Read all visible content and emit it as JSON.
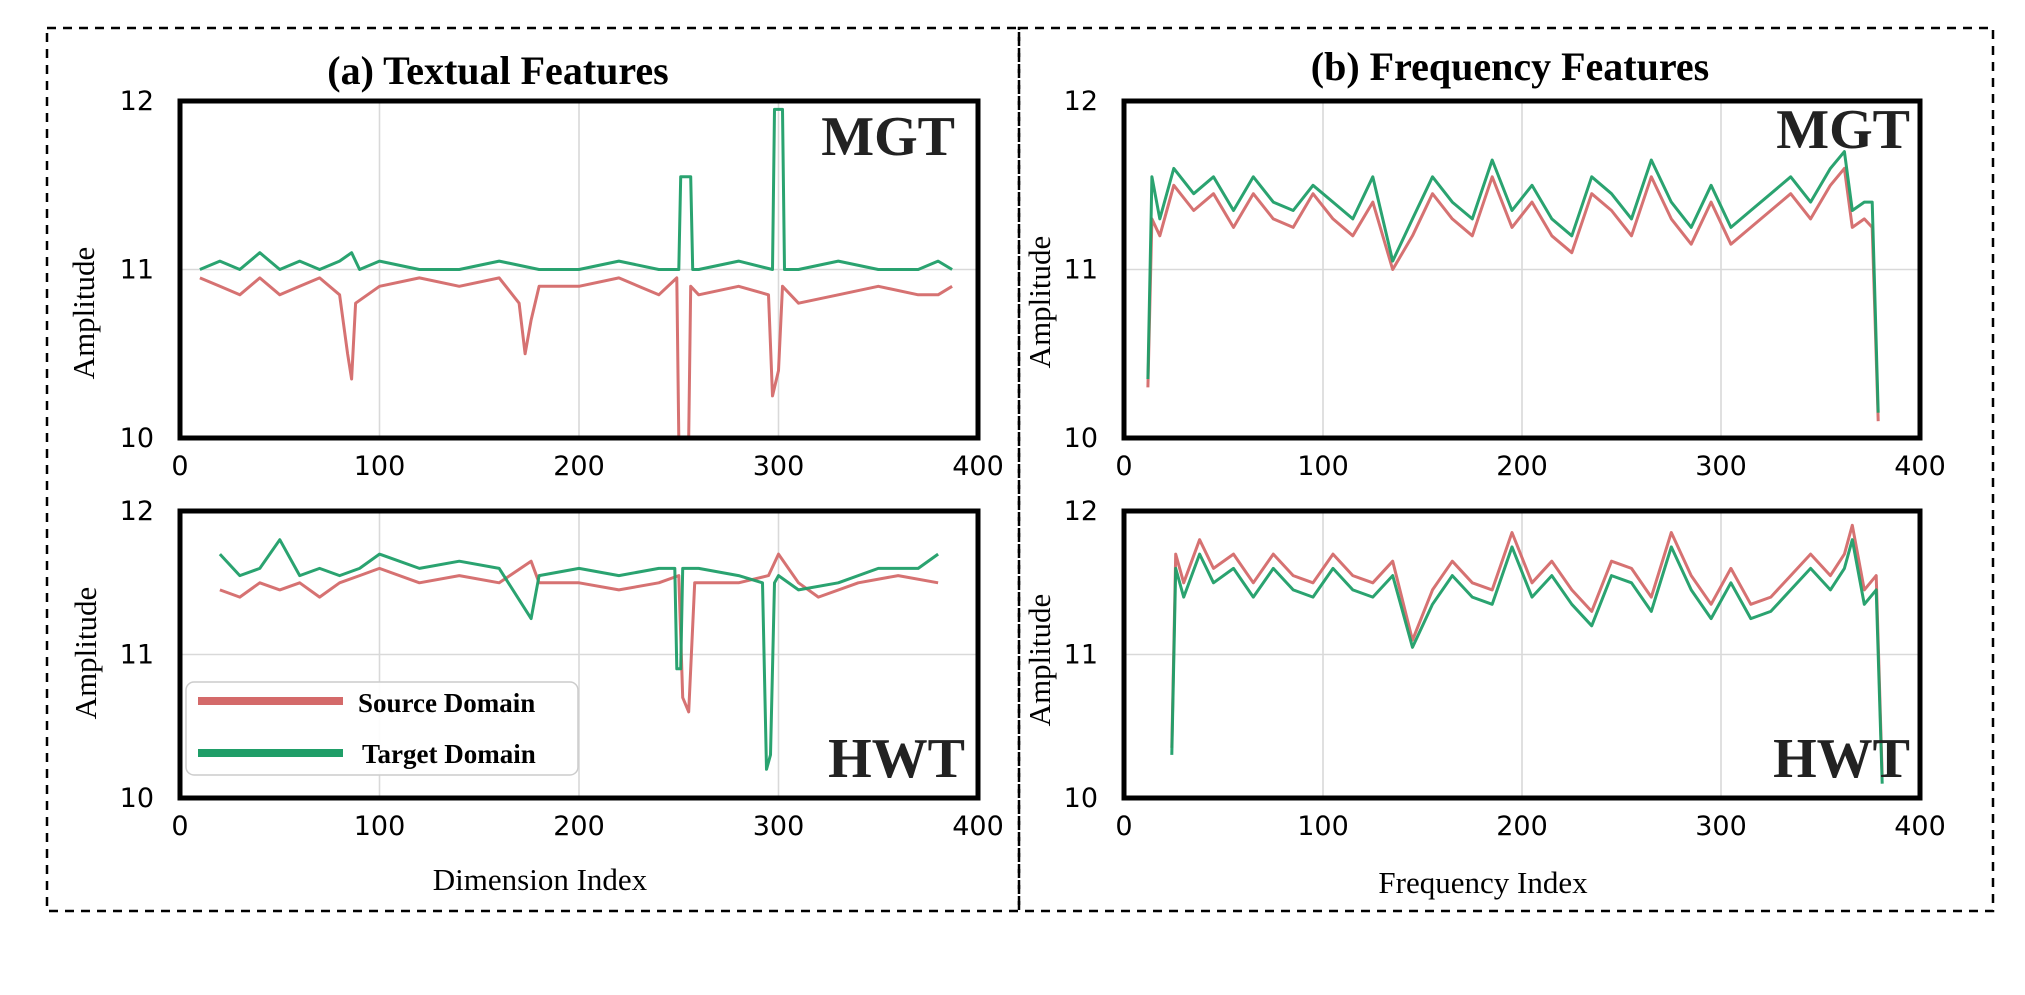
{
  "figure": {
    "panel_titles": [
      "(a) Textual Features",
      "(b) Frequency Features"
    ],
    "xlabels": [
      "Dimension Index",
      "Frequency Index"
    ],
    "ylabel": "Amplitude",
    "legend": [
      {
        "label": "Source Domain",
        "color": "#d46a6a"
      },
      {
        "label": "Target Domain",
        "color": "#1f9e68"
      }
    ],
    "colors": {
      "source": "#d46a6a",
      "target": "#1f9e68",
      "frame": "#000000",
      "grid": "#d9d9d9",
      "dash_box": "#000000"
    }
  },
  "chart_data": [
    {
      "id": "textual-mgt",
      "type": "line",
      "panel": "(a) Textual Features",
      "tag": "MGT",
      "xlim": [
        0,
        400
      ],
      "ylim": [
        10,
        12
      ],
      "xticks": [
        0,
        100,
        200,
        300,
        400
      ],
      "yticks": [
        10,
        11,
        12
      ],
      "grid": true,
      "series": [
        {
          "name": "Source Domain",
          "x": [
            10,
            20,
            30,
            40,
            50,
            60,
            70,
            80,
            84,
            86,
            88,
            100,
            120,
            140,
            160,
            170,
            173,
            176,
            180,
            200,
            220,
            240,
            249,
            250,
            255,
            256,
            260,
            280,
            295,
            297,
            300,
            302,
            310,
            330,
            350,
            370,
            380,
            387
          ],
          "y": [
            10.95,
            10.9,
            10.85,
            10.95,
            10.85,
            10.9,
            10.95,
            10.85,
            10.5,
            10.35,
            10.8,
            10.9,
            10.95,
            10.9,
            10.95,
            10.8,
            10.5,
            10.7,
            10.9,
            10.9,
            10.95,
            10.85,
            10.95,
            10.0,
            10.0,
            10.9,
            10.85,
            10.9,
            10.85,
            10.25,
            10.4,
            10.9,
            10.8,
            10.85,
            10.9,
            10.85,
            10.85,
            10.9
          ]
        },
        {
          "name": "Target Domain",
          "x": [
            10,
            20,
            30,
            40,
            50,
            60,
            70,
            80,
            86,
            90,
            100,
            120,
            140,
            160,
            180,
            200,
            220,
            240,
            250,
            251,
            256,
            257,
            260,
            280,
            297,
            298,
            302,
            303,
            310,
            330,
            350,
            370,
            380,
            387
          ],
          "y": [
            11.0,
            11.05,
            11.0,
            11.1,
            11.0,
            11.05,
            11.0,
            11.05,
            11.1,
            11.0,
            11.05,
            11.0,
            11.0,
            11.05,
            11.0,
            11.0,
            11.05,
            11.0,
            11.0,
            11.55,
            11.55,
            11.0,
            11.0,
            11.05,
            11.0,
            11.95,
            11.95,
            11.0,
            11.0,
            11.05,
            11.0,
            11.0,
            11.05,
            11.0
          ]
        }
      ]
    },
    {
      "id": "textual-hwt",
      "type": "line",
      "panel": "(a) Textual Features",
      "tag": "HWT",
      "xlim": [
        0,
        400
      ],
      "ylim": [
        10,
        12
      ],
      "xticks": [
        0,
        100,
        200,
        300,
        400
      ],
      "yticks": [
        10,
        11,
        12
      ],
      "grid": true,
      "series": [
        {
          "name": "Source Domain",
          "x": [
            20,
            30,
            40,
            50,
            60,
            70,
            80,
            90,
            100,
            120,
            140,
            160,
            176,
            180,
            200,
            220,
            240,
            250,
            252,
            255,
            258,
            260,
            280,
            295,
            300,
            310,
            320,
            340,
            360,
            380
          ],
          "y": [
            11.45,
            11.4,
            11.5,
            11.45,
            11.5,
            11.4,
            11.5,
            11.55,
            11.6,
            11.5,
            11.55,
            11.5,
            11.65,
            11.5,
            11.5,
            11.45,
            11.5,
            11.55,
            10.7,
            10.6,
            11.5,
            11.5,
            11.5,
            11.55,
            11.7,
            11.5,
            11.4,
            11.5,
            11.55,
            11.5
          ]
        },
        {
          "name": "Target Domain",
          "x": [
            20,
            30,
            40,
            50,
            60,
            70,
            80,
            90,
            100,
            120,
            140,
            160,
            176,
            180,
            200,
            220,
            240,
            248,
            249,
            251,
            252,
            260,
            280,
            292,
            294,
            296,
            298,
            300,
            310,
            330,
            350,
            370,
            380
          ],
          "y": [
            11.7,
            11.55,
            11.6,
            11.8,
            11.55,
            11.6,
            11.55,
            11.6,
            11.7,
            11.6,
            11.65,
            11.6,
            11.25,
            11.55,
            11.6,
            11.55,
            11.6,
            11.6,
            10.9,
            10.9,
            11.6,
            11.6,
            11.55,
            11.5,
            10.2,
            10.3,
            11.5,
            11.55,
            11.45,
            11.5,
            11.6,
            11.6,
            11.7
          ]
        }
      ]
    },
    {
      "id": "frequency-mgt",
      "type": "line",
      "panel": "(b) Frequency Features",
      "tag": "MGT",
      "xlim": [
        0,
        400
      ],
      "ylim": [
        10,
        12
      ],
      "xticks": [
        0,
        100,
        200,
        300,
        400
      ],
      "yticks": [
        10,
        11,
        12
      ],
      "grid": true,
      "series": [
        {
          "name": "Source Domain",
          "x": [
            12,
            14,
            18,
            25,
            35,
            45,
            55,
            65,
            75,
            85,
            95,
            105,
            115,
            125,
            135,
            145,
            155,
            165,
            175,
            185,
            195,
            205,
            215,
            225,
            235,
            245,
            255,
            265,
            275,
            285,
            295,
            305,
            315,
            325,
            335,
            345,
            355,
            362,
            366,
            372,
            376,
            379
          ],
          "y": [
            10.3,
            11.3,
            11.2,
            11.5,
            11.35,
            11.45,
            11.25,
            11.45,
            11.3,
            11.25,
            11.45,
            11.3,
            11.2,
            11.4,
            11.0,
            11.2,
            11.45,
            11.3,
            11.2,
            11.55,
            11.25,
            11.4,
            11.2,
            11.1,
            11.45,
            11.35,
            11.2,
            11.55,
            11.3,
            11.15,
            11.4,
            11.15,
            11.25,
            11.35,
            11.45,
            11.3,
            11.5,
            11.6,
            11.25,
            11.3,
            11.25,
            10.1
          ]
        },
        {
          "name": "Target Domain",
          "x": [
            12,
            14,
            18,
            25,
            35,
            45,
            55,
            65,
            75,
            85,
            95,
            105,
            115,
            125,
            135,
            145,
            155,
            165,
            175,
            185,
            195,
            205,
            215,
            225,
            235,
            245,
            255,
            265,
            275,
            285,
            295,
            305,
            315,
            325,
            335,
            345,
            355,
            362,
            366,
            372,
            376,
            379
          ],
          "y": [
            10.35,
            11.55,
            11.3,
            11.6,
            11.45,
            11.55,
            11.35,
            11.55,
            11.4,
            11.35,
            11.5,
            11.4,
            11.3,
            11.55,
            11.05,
            11.3,
            11.55,
            11.4,
            11.3,
            11.65,
            11.35,
            11.5,
            11.3,
            11.2,
            11.55,
            11.45,
            11.3,
            11.65,
            11.4,
            11.25,
            11.5,
            11.25,
            11.35,
            11.45,
            11.55,
            11.4,
            11.6,
            11.7,
            11.35,
            11.4,
            11.4,
            10.15
          ]
        }
      ]
    },
    {
      "id": "frequency-hwt",
      "type": "line",
      "panel": "(b) Frequency Features",
      "tag": "HWT",
      "xlim": [
        0,
        400
      ],
      "ylim": [
        10,
        12
      ],
      "xticks": [
        0,
        100,
        200,
        300,
        400
      ],
      "yticks": [
        10,
        11,
        12
      ],
      "grid": true,
      "series": [
        {
          "name": "Source Domain",
          "x": [
            24,
            26,
            30,
            38,
            45,
            55,
            65,
            75,
            85,
            95,
            105,
            115,
            125,
            135,
            145,
            155,
            165,
            175,
            185,
            195,
            205,
            215,
            225,
            235,
            245,
            255,
            265,
            275,
            285,
            295,
            305,
            315,
            325,
            335,
            345,
            355,
            362,
            366,
            372,
            378,
            381
          ],
          "y": [
            10.35,
            11.7,
            11.5,
            11.8,
            11.6,
            11.7,
            11.5,
            11.7,
            11.55,
            11.5,
            11.7,
            11.55,
            11.5,
            11.65,
            11.1,
            11.45,
            11.65,
            11.5,
            11.45,
            11.85,
            11.5,
            11.65,
            11.45,
            11.3,
            11.65,
            11.6,
            11.4,
            11.85,
            11.55,
            11.35,
            11.6,
            11.35,
            11.4,
            11.55,
            11.7,
            11.55,
            11.7,
            11.9,
            11.45,
            11.55,
            10.15
          ]
        },
        {
          "name": "Target Domain",
          "x": [
            24,
            26,
            30,
            38,
            45,
            55,
            65,
            75,
            85,
            95,
            105,
            115,
            125,
            135,
            145,
            155,
            165,
            175,
            185,
            195,
            205,
            215,
            225,
            235,
            245,
            255,
            265,
            275,
            285,
            295,
            305,
            315,
            325,
            335,
            345,
            355,
            362,
            366,
            372,
            378,
            381
          ],
          "y": [
            10.3,
            11.6,
            11.4,
            11.7,
            11.5,
            11.6,
            11.4,
            11.6,
            11.45,
            11.4,
            11.6,
            11.45,
            11.4,
            11.55,
            11.05,
            11.35,
            11.55,
            11.4,
            11.35,
            11.75,
            11.4,
            11.55,
            11.35,
            11.2,
            11.55,
            11.5,
            11.3,
            11.75,
            11.45,
            11.25,
            11.5,
            11.25,
            11.3,
            11.45,
            11.6,
            11.45,
            11.6,
            11.8,
            11.35,
            11.45,
            10.1
          ]
        }
      ]
    }
  ]
}
